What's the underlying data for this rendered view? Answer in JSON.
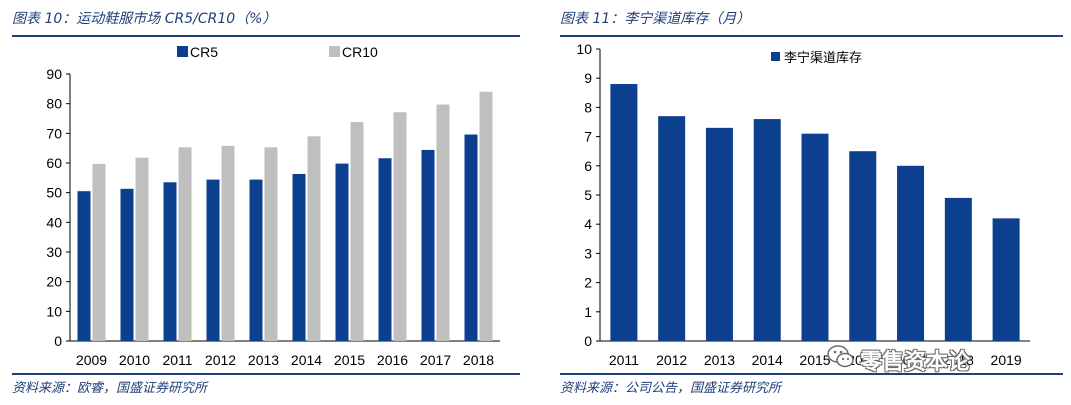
{
  "figures": {
    "left": {
      "title": "图表 10：运动鞋服市场 CR5/CR10（%）",
      "source": "资料来源：欧睿，国盛证券研究所"
    },
    "right": {
      "title": "图表 11：李宁渠道库存（月）",
      "source": "资料来源：公司公告，国盛证券研究所"
    }
  },
  "watermark": {
    "text": "零售资本论",
    "icon": "wechat-logo-icon"
  },
  "chart_data": [
    {
      "type": "bar",
      "title": "图表 10：运动鞋服市场 CR5/CR10（%）",
      "categories": [
        "2009",
        "2010",
        "2011",
        "2012",
        "2013",
        "2014",
        "2015",
        "2016",
        "2017",
        "2018"
      ],
      "series": [
        {
          "name": "CR5",
          "color": "#0d3f8f",
          "values": [
            50.5,
            51.3,
            53.5,
            54.4,
            54.4,
            56.3,
            59.8,
            61.6,
            64.4,
            69.6
          ]
        },
        {
          "name": "CR10",
          "color": "#bfbfbf",
          "values": [
            59.7,
            61.8,
            65.3,
            65.8,
            65.3,
            69.0,
            73.8,
            77.1,
            79.7,
            84.0
          ]
        }
      ],
      "ylim": [
        0,
        90
      ],
      "yticks": [
        0,
        10,
        20,
        30,
        40,
        50,
        60,
        70,
        80,
        90
      ],
      "grid": false,
      "legend": "top"
    },
    {
      "type": "bar",
      "title": "图表 11：李宁渠道库存（月）",
      "categories": [
        "2011",
        "2012",
        "2013",
        "2014",
        "2015",
        "2016",
        "2017",
        "2018",
        "2019"
      ],
      "series": [
        {
          "name": "李宁渠道库存",
          "color": "#0d3f8f",
          "values": [
            8.8,
            7.7,
            7.3,
            7.6,
            7.1,
            6.5,
            6.0,
            4.9,
            4.2
          ]
        }
      ],
      "ylim": [
        0,
        10
      ],
      "yticks": [
        0,
        1,
        2,
        3,
        4,
        5,
        6,
        7,
        8,
        9,
        10
      ],
      "grid": false,
      "legend": "top-center"
    }
  ]
}
